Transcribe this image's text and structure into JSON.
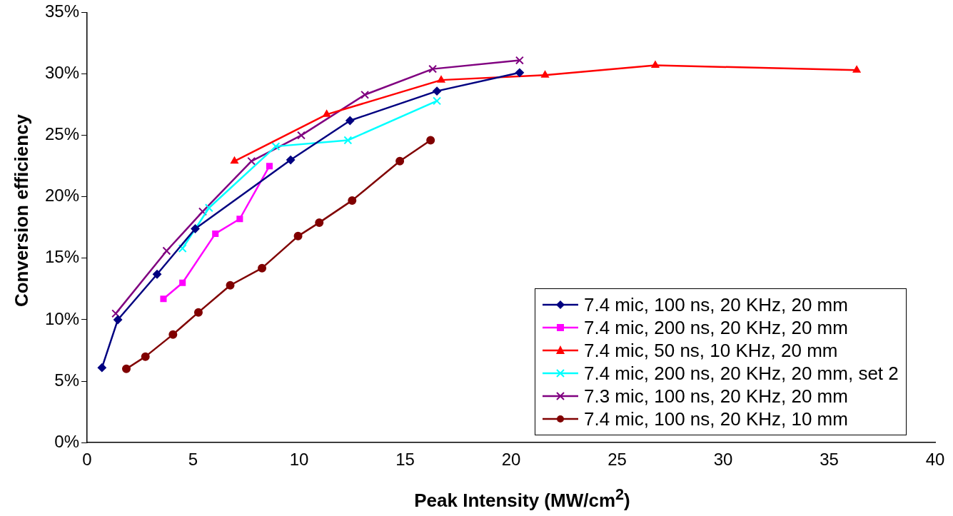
{
  "chart_data": {
    "type": "line",
    "xlabel": "Peak Intensity (MW/cm$^{2}$)",
    "ylabel": "Conversion efficiency",
    "xlim": [
      0,
      40
    ],
    "xticks": [
      0,
      5,
      10,
      15,
      20,
      25,
      30,
      35,
      40
    ],
    "ylim": [
      0,
      35
    ],
    "yticks": [
      {
        "value": 0,
        "label": "0%"
      },
      {
        "value": 5,
        "label": "5%"
      },
      {
        "value": 10,
        "label": "10%"
      },
      {
        "value": 15,
        "label": "15%"
      },
      {
        "value": 20,
        "label": "20%"
      },
      {
        "value": 25,
        "label": "25%"
      },
      {
        "value": 30,
        "label": "30%"
      },
      {
        "value": 35,
        "label": "35%"
      }
    ],
    "grid": false,
    "legend": "bottom right",
    "line_style": "solid",
    "series": [
      {
        "name": "7.4 mic, 100 ns, 20 KHz, 20 mm",
        "color": "#000080",
        "marker": "diamond",
        "x": [
          0.7,
          1.45,
          3.3,
          5.1,
          9.6,
          12.4,
          16.5,
          20.4
        ],
        "values": [
          6.1,
          10.0,
          13.7,
          17.4,
          23.0,
          26.2,
          28.6,
          30.1
        ]
      },
      {
        "name": "7.4 mic, 200 ns, 20 KHz, 20 mm",
        "color": "#ff00ff",
        "marker": "square",
        "x": [
          3.6,
          4.5,
          6.05,
          7.2,
          8.6
        ],
        "values": [
          11.7,
          13.0,
          17.0,
          18.2,
          22.5
        ]
      },
      {
        "name": "7.4 mic, 50 ns, 10 KHz, 20 mm",
        "color": "#ff0000",
        "marker": "triangle",
        "x": [
          6.95,
          11.3,
          16.7,
          21.6,
          26.8,
          36.3
        ],
        "values": [
          22.9,
          26.7,
          29.5,
          29.9,
          30.7,
          30.3
        ]
      },
      {
        "name": "7.4 mic, 200 ns, 20 KHz, 20 mm, set 2",
        "color": "#00ffff",
        "marker": "cross",
        "x": [
          4.5,
          5.75,
          8.9,
          12.3,
          16.5
        ],
        "values": [
          15.8,
          19.1,
          24.1,
          24.6,
          27.8
        ]
      },
      {
        "name": "7.3 mic, 100 ns, 20 KHz, 20 mm",
        "color": "#800080",
        "marker": "cross",
        "x": [
          1.35,
          3.75,
          5.45,
          7.75,
          10.1,
          13.1,
          16.3,
          20.4
        ],
        "values": [
          10.5,
          15.6,
          18.8,
          22.9,
          25.0,
          28.3,
          30.4,
          31.1
        ]
      },
      {
        "name": "7.4 mic, 100 ns, 20 KHz, 10 mm",
        "color": "#800000",
        "marker": "circle",
        "x": [
          1.85,
          2.75,
          4.05,
          5.25,
          6.75,
          8.25,
          9.95,
          10.95,
          12.5,
          14.75,
          16.2
        ],
        "values": [
          6.0,
          7.0,
          8.8,
          10.6,
          12.8,
          14.2,
          16.8,
          17.9,
          19.7,
          22.9,
          24.6
        ]
      }
    ]
  }
}
